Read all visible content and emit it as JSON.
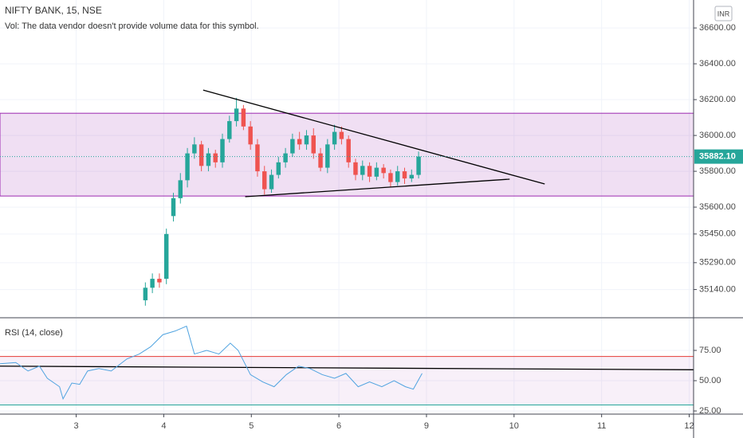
{
  "chart_data": [
    {
      "type": "candlestick",
      "title": "NIFTY BANK, 15, NSE",
      "subtitle": "Vol: The data vendor doesn't provide volume data for this symbol.",
      "currency": "INR",
      "up_color": "#26a69a",
      "down_color": "#ef5350",
      "grid": true,
      "x": [
        0.79,
        0.87,
        0.95,
        1.03,
        1.11,
        1.19,
        1.27,
        1.35,
        1.43,
        1.51,
        1.59,
        1.67,
        1.75,
        1.83,
        1.91,
        1.99,
        2.07,
        2.15,
        2.23,
        2.31,
        2.39,
        2.47,
        2.55,
        2.63,
        2.71,
        2.79,
        2.87,
        2.95,
        3.03,
        3.11,
        3.19,
        3.27,
        3.35,
        3.43,
        3.51,
        3.59,
        3.67,
        3.75,
        3.83,
        3.91
      ],
      "open": [
        35080,
        35150,
        35200,
        35200,
        35550,
        35650,
        35750,
        35900,
        35950,
        35830,
        35900,
        35850,
        35980,
        36080,
        36150,
        36050,
        35950,
        35800,
        35700,
        35780,
        35850,
        35900,
        35980,
        35950,
        36000,
        35900,
        35820,
        35950,
        36020,
        35980,
        35850,
        35780,
        35830,
        35770,
        35820,
        35790,
        35740,
        35800,
        35760,
        35780
      ],
      "high": [
        35180,
        35230,
        35230,
        35480,
        35680,
        35790,
        35930,
        35990,
        35970,
        35930,
        35920,
        36010,
        36110,
        36210,
        36170,
        36080,
        35980,
        35830,
        35810,
        35880,
        35930,
        36010,
        36020,
        36030,
        36040,
        35930,
        35980,
        36060,
        36050,
        36000,
        35870,
        35860,
        35850,
        35850,
        35840,
        35810,
        35830,
        35820,
        35810,
        35910
      ],
      "low": [
        35050,
        35120,
        35150,
        35170,
        35520,
        35620,
        35710,
        35870,
        35800,
        35800,
        35820,
        35820,
        35960,
        36050,
        36030,
        35920,
        35770,
        35670,
        35680,
        35760,
        35820,
        35880,
        35920,
        35920,
        35870,
        35800,
        35790,
        35920,
        35950,
        35820,
        35750,
        35750,
        35740,
        35750,
        35760,
        35710,
        35720,
        35730,
        35740,
        35760
      ],
      "close": [
        35150,
        35200,
        35180,
        35450,
        35650,
        35750,
        35900,
        35950,
        35830,
        35900,
        35850,
        35980,
        36080,
        36150,
        36050,
        35950,
        35800,
        35700,
        35780,
        35850,
        35900,
        35980,
        35950,
        36000,
        35900,
        35820,
        35950,
        36020,
        35980,
        35850,
        35780,
        35830,
        35770,
        35820,
        35790,
        35740,
        35800,
        35760,
        35780,
        35882.1
      ],
      "xlim": [
        -0.87,
        7.05
      ],
      "xticks": [
        {
          "value": 0,
          "label": "3"
        },
        {
          "value": 1,
          "label": "4"
        },
        {
          "value": 2,
          "label": "5"
        },
        {
          "value": 3,
          "label": "6"
        },
        {
          "value": 4,
          "label": "9"
        },
        {
          "value": 5,
          "label": "10"
        },
        {
          "value": 6,
          "label": "11"
        },
        {
          "value": 7,
          "label": "12"
        }
      ],
      "ylim": [
        34987,
        36756
      ],
      "yticks": [
        {
          "value": 35140,
          "label": "35140.00"
        },
        {
          "value": 35290,
          "label": "35290.00"
        },
        {
          "value": 35450,
          "label": "35450.00"
        },
        {
          "value": 35600,
          "label": "35600.00"
        },
        {
          "value": 35800,
          "label": "35800.00"
        },
        {
          "value": 36000,
          "label": "36000.00"
        },
        {
          "value": 36200,
          "label": "36200.00"
        },
        {
          "value": 36400,
          "label": "36400.00"
        },
        {
          "value": 36600,
          "label": "36600.00"
        }
      ],
      "last_price": {
        "value": 35882.1,
        "label": "35882.10",
        "color": "#26a69a"
      },
      "zone": {
        "low": 35662,
        "high": 36124,
        "color": "#9c27b0"
      },
      "trendlines": [
        {
          "x": [
            1.45,
            5.35
          ],
          "y": [
            36253,
            35729
          ]
        },
        {
          "x": [
            1.93,
            4.95
          ],
          "y": [
            35658,
            35756
          ]
        }
      ]
    },
    {
      "type": "line",
      "title": "RSI (14, close)",
      "color": "#4fa3e0",
      "grid": true,
      "x": [
        -0.87,
        -0.69,
        -0.55,
        -0.42,
        -0.33,
        -0.19,
        -0.15,
        -0.05,
        0.04,
        0.13,
        0.26,
        0.4,
        0.49,
        0.58,
        0.72,
        0.85,
        0.99,
        1.13,
        1.26,
        1.35,
        1.49,
        1.63,
        1.76,
        1.85,
        1.99,
        2.13,
        2.26,
        2.4,
        2.54,
        2.67,
        2.81,
        2.95,
        3.08,
        3.22,
        3.35,
        3.49,
        3.63,
        3.76,
        3.85,
        3.95
      ],
      "values": [
        64,
        65,
        58,
        62,
        52,
        45,
        35,
        48,
        47,
        58,
        60,
        58,
        63,
        68,
        72,
        78,
        88,
        91,
        95,
        72,
        75,
        72,
        81,
        75,
        55,
        49,
        45,
        55,
        62,
        60,
        55,
        52,
        56,
        45,
        49,
        45,
        50,
        45,
        43,
        56
      ],
      "xlim": [
        -0.87,
        7.05
      ],
      "ylim": [
        22.4,
        101.3
      ],
      "yticks": [
        {
          "value": 25,
          "label": "25.00"
        },
        {
          "value": 50,
          "label": "50.00"
        },
        {
          "value": 75,
          "label": "75.00"
        }
      ],
      "band": {
        "low": 30,
        "high": 70,
        "color": "#9c27b0"
      },
      "levels": [
        {
          "value": 70,
          "color": "#e53935"
        },
        {
          "value": 30,
          "color": "#26a69a"
        }
      ],
      "trendlines": [
        {
          "x": [
            -0.87,
            7.05
          ],
          "y": [
            62,
            59
          ]
        }
      ]
    }
  ]
}
